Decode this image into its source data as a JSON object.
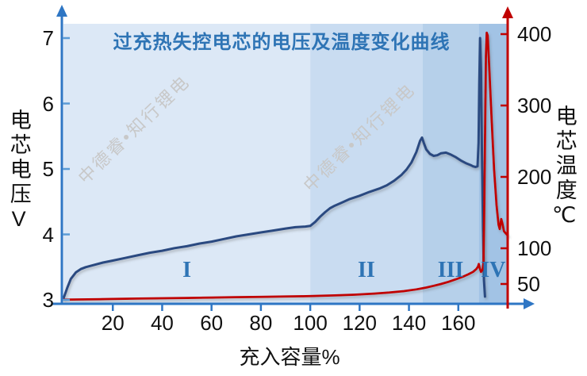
{
  "watermark": "中德睿•知行锂电",
  "colors": {
    "axis_blue": "#2e76c4",
    "tick_blue": "#5b9bd5",
    "axis_red": "#c00000",
    "title_blue": "#2e74b5",
    "region_label_blue": "#2e74b5",
    "voltage_line": "#2b4a80",
    "temperature_line": "#c00000",
    "watermark_grey": "#c8c8c8",
    "tick_text": "#111111",
    "region_fills": [
      "#dce8f6",
      "#c9dcf1",
      "#b6d0ea",
      "#a2c3e5"
    ]
  },
  "chart_data": {
    "type": "line",
    "title": "过充热失控电芯的电压及温度变化曲线",
    "xlabel": "充入容量%",
    "ylabel_left": "电芯电压V",
    "ylabel_right": "电芯温度℃",
    "xlim": [
      0,
      183
    ],
    "ylim_left": [
      3,
      7
    ],
    "ylim_right": [
      22,
      420
    ],
    "x_ticks": [
      20,
      40,
      60,
      80,
      100,
      120,
      140,
      160
    ],
    "y_ticks_left": [
      3,
      4,
      5,
      6,
      7
    ],
    "y_ticks_right": [
      50,
      100,
      200,
      300,
      400
    ],
    "grid": "off",
    "legend": "none",
    "regions": [
      {
        "label": "I",
        "x_start": 0,
        "x_end": 100
      },
      {
        "label": "II",
        "x_start": 100,
        "x_end": 145.5
      },
      {
        "label": "III",
        "x_start": 145.5,
        "x_end": 168.3
      },
      {
        "label": "IV",
        "x_start": 168.3,
        "x_end": 180
      }
    ],
    "series": [
      {
        "name": "电芯电压",
        "axis": "left",
        "unit": "V",
        "points": [
          [
            0,
            3.02
          ],
          [
            1.5,
            3.18
          ],
          [
            3,
            3.32
          ],
          [
            5,
            3.42
          ],
          [
            7,
            3.47
          ],
          [
            9,
            3.5
          ],
          [
            12,
            3.53
          ],
          [
            16,
            3.57
          ],
          [
            20,
            3.6
          ],
          [
            25,
            3.64
          ],
          [
            30,
            3.68
          ],
          [
            35,
            3.72
          ],
          [
            40,
            3.75
          ],
          [
            45,
            3.79
          ],
          [
            50,
            3.82
          ],
          [
            55,
            3.86
          ],
          [
            60,
            3.89
          ],
          [
            65,
            3.93
          ],
          [
            70,
            3.97
          ],
          [
            75,
            4.0
          ],
          [
            80,
            4.03
          ],
          [
            85,
            4.06
          ],
          [
            90,
            4.09
          ],
          [
            94,
            4.11
          ],
          [
            98,
            4.12
          ],
          [
            100,
            4.13
          ],
          [
            102,
            4.19
          ],
          [
            104,
            4.27
          ],
          [
            106,
            4.34
          ],
          [
            108,
            4.4
          ],
          [
            110,
            4.44
          ],
          [
            113,
            4.49
          ],
          [
            116,
            4.54
          ],
          [
            120,
            4.59
          ],
          [
            124,
            4.65
          ],
          [
            128,
            4.7
          ],
          [
            131,
            4.75
          ],
          [
            134,
            4.82
          ],
          [
            137,
            4.91
          ],
          [
            139,
            4.99
          ],
          [
            141,
            5.1
          ],
          [
            143,
            5.26
          ],
          [
            144.5,
            5.43
          ],
          [
            145.3,
            5.48
          ],
          [
            146,
            5.4
          ],
          [
            147,
            5.3
          ],
          [
            148.5,
            5.23
          ],
          [
            150,
            5.2
          ],
          [
            151.5,
            5.21
          ],
          [
            153,
            5.24
          ],
          [
            155,
            5.25
          ],
          [
            157,
            5.22
          ],
          [
            159,
            5.18
          ],
          [
            161,
            5.13
          ],
          [
            163,
            5.09
          ],
          [
            165,
            5.06
          ],
          [
            166,
            5.04
          ],
          [
            167,
            5.03
          ],
          [
            167.8,
            5.04
          ],
          [
            168.2,
            5.4
          ],
          [
            168.5,
            6.3
          ],
          [
            168.8,
            7.0
          ],
          [
            169.2,
            6.5
          ],
          [
            169.6,
            5.2
          ],
          [
            170,
            4.1
          ],
          [
            170.4,
            3.3
          ],
          [
            170.8,
            3.05
          ]
        ]
      },
      {
        "name": "电芯温度",
        "axis": "right",
        "unit": "°C",
        "points": [
          [
            0,
            28
          ],
          [
            10,
            28.5
          ],
          [
            20,
            29
          ],
          [
            30,
            29.5
          ],
          [
            40,
            30
          ],
          [
            50,
            30.5
          ],
          [
            60,
            31
          ],
          [
            70,
            31.5
          ],
          [
            80,
            32
          ],
          [
            90,
            32.5
          ],
          [
            100,
            33
          ],
          [
            110,
            34
          ],
          [
            118,
            35
          ],
          [
            126,
            36.5
          ],
          [
            132,
            38
          ],
          [
            138,
            40
          ],
          [
            143,
            42.5
          ],
          [
            147,
            45
          ],
          [
            150,
            47.5
          ],
          [
            153,
            50
          ],
          [
            156,
            53
          ],
          [
            159,
            56.5
          ],
          [
            162,
            60.5
          ],
          [
            164,
            63.5
          ],
          [
            166,
            67
          ],
          [
            167.3,
            71
          ],
          [
            168,
            74.5
          ],
          [
            168.3,
            78
          ],
          [
            168.7,
            72
          ],
          [
            169.2,
            67
          ],
          [
            169.8,
            70
          ],
          [
            170.2,
            80
          ],
          [
            170.5,
            150
          ],
          [
            170.9,
            280
          ],
          [
            171.2,
            370
          ],
          [
            171.5,
            402
          ],
          [
            171.9,
            398
          ],
          [
            172.5,
            355
          ],
          [
            173.5,
            280
          ],
          [
            174.5,
            210
          ],
          [
            175.5,
            160
          ],
          [
            176.3,
            133
          ],
          [
            176.8,
            127
          ],
          [
            177.4,
            141
          ],
          [
            177.9,
            134
          ],
          [
            178.5,
            124
          ],
          [
            179.2,
            121
          ],
          [
            180,
            118
          ]
        ]
      }
    ]
  }
}
